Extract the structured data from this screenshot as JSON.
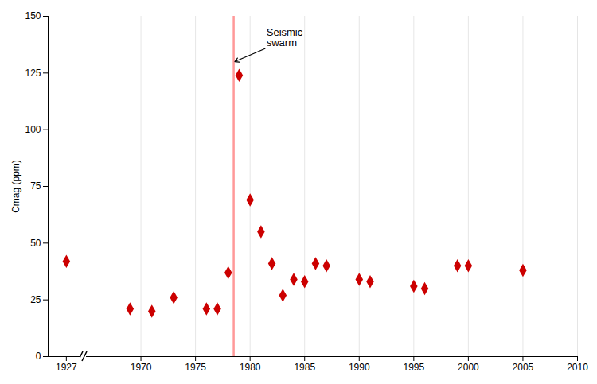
{
  "chart_data": [
    {
      "type": "scatter",
      "ylabel": "Cmag (ppm)",
      "x": [
        1927
      ],
      "values": [
        42
      ],
      "xlim": [
        1925,
        1928.5
      ],
      "xticks": [
        1927
      ],
      "ylim": [
        0,
        150
      ],
      "yticks": [
        0,
        25,
        50,
        75,
        100,
        125,
        150
      ],
      "color": "#cc0000",
      "marker": "diamond",
      "grid": false
    },
    {
      "type": "scatter",
      "x": [
        1969,
        1971,
        1973,
        1976,
        1977,
        1978,
        1979,
        1980,
        1981,
        1982,
        1983,
        1984,
        1985,
        1986,
        1987,
        1990,
        1991,
        1995,
        1996,
        1999,
        2000,
        2005
      ],
      "values": [
        21,
        20,
        26,
        21,
        21,
        37,
        124,
        69,
        55,
        41,
        27,
        34,
        33,
        41,
        40,
        34,
        33,
        31,
        30,
        40,
        40,
        38
      ],
      "xlim": [
        1965,
        2010
      ],
      "xticks": [
        1970,
        1975,
        1980,
        1985,
        1990,
        1995,
        2000,
        2005,
        2010
      ],
      "ylim": [
        0,
        150
      ],
      "tick_labels": "x",
      "color": "#cc0000",
      "marker": "diamond",
      "grid": "x",
      "vline": {
        "x": 1978.5,
        "color": "#ff9999"
      },
      "annotations": [
        {
          "text": "Seismic\nswarm",
          "x": 1981.5,
          "y": 136,
          "arrow_x": 1978.6,
          "arrow_y": 130
        }
      ]
    }
  ]
}
